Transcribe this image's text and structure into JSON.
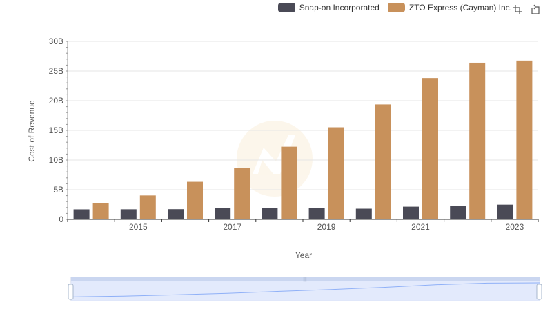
{
  "legend": {
    "series_a": "Snap-on Incorporated",
    "series_b": "ZTO Express (Cayman) Inc."
  },
  "toolbox": {
    "zoom_icon": "zoom-icon",
    "restore_icon": "restore-icon"
  },
  "colors": {
    "series_a": "#4a4a56",
    "series_b": "#c8915b",
    "grid": "#e6e6e6",
    "axis": "#333333",
    "zoom_fill": "#dfe7fb",
    "zoom_line": "#8fb0f7"
  },
  "chart_data": {
    "type": "bar",
    "xlabel": "Year",
    "ylabel": "Cost of Revenue",
    "ylim": [
      0,
      30000000000
    ],
    "y_ticks": [
      "0",
      "5B",
      "10B",
      "15B",
      "20B",
      "25B",
      "30B"
    ],
    "x_tick_labels": [
      "2015",
      "2017",
      "2019",
      "2021",
      "2023"
    ],
    "categories": [
      "2014",
      "2015",
      "2016",
      "2017",
      "2018",
      "2019",
      "2020",
      "2021",
      "2022",
      "2023"
    ],
    "series": [
      {
        "name": "Snap-on Incorporated",
        "values": [
          1690000000,
          1700000000,
          1720000000,
          1860000000,
          1870000000,
          1860000000,
          1800000000,
          2140000000,
          2310000000,
          2480000000
        ]
      },
      {
        "name": "ZTO Express (Cayman) Inc.",
        "values": [
          2750000000,
          4030000000,
          6330000000,
          8690000000,
          12250000000,
          15520000000,
          19370000000,
          23820000000,
          26400000000,
          26760000000
        ]
      }
    ]
  }
}
